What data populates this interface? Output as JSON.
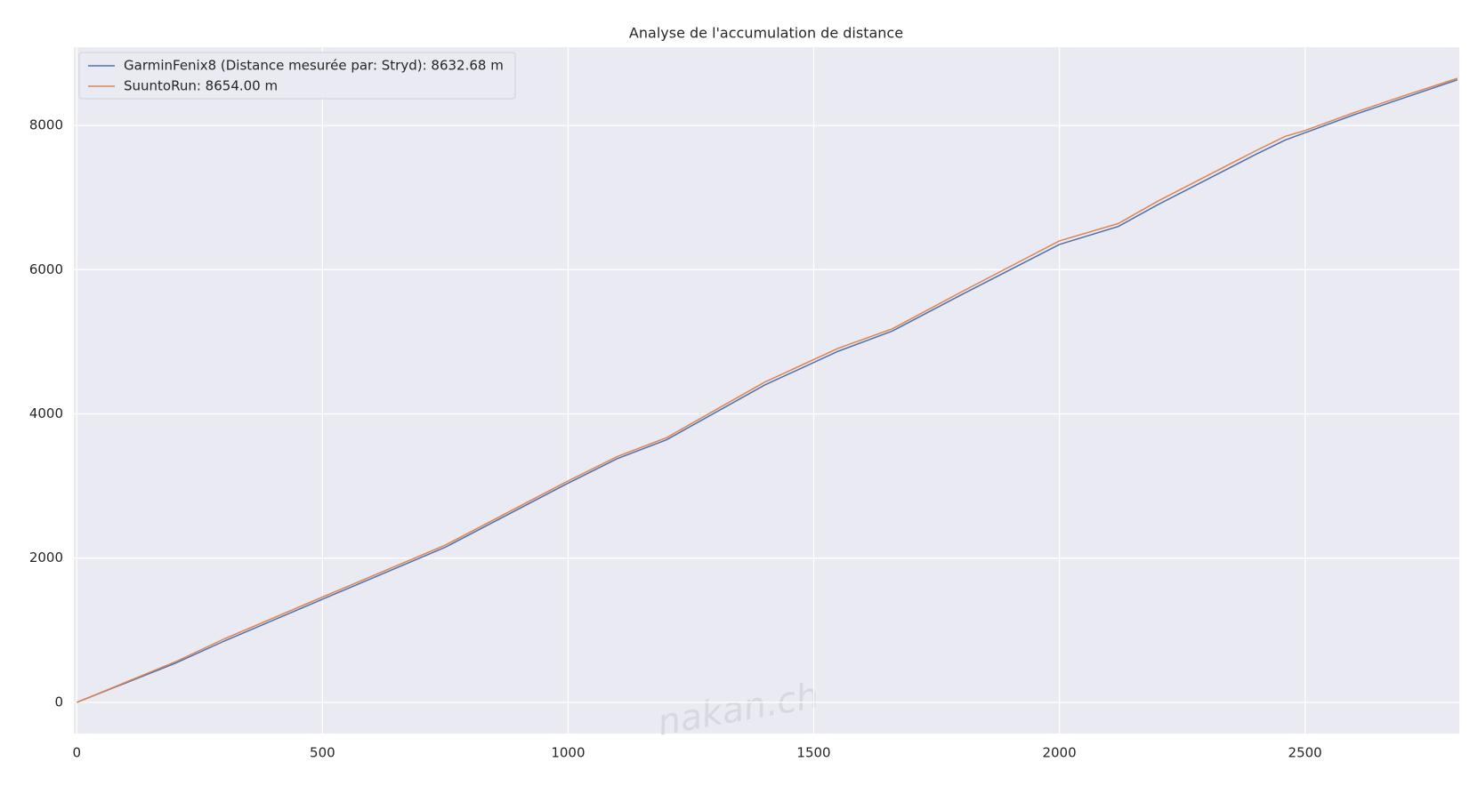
{
  "chart_data": {
    "type": "line",
    "title": "Analyse de l'accumulation de distance",
    "watermark": "nakan.ch",
    "series": [
      {
        "name": "GarminFenix8 (Distance mesurée par: Stryd): 8632.68 m",
        "color": "#4c72b0",
        "x": [
          0,
          100,
          200,
          300,
          500,
          750,
          1000,
          1100,
          1200,
          1400,
          1550,
          1660,
          1800,
          2000,
          2120,
          2200,
          2400,
          2460,
          2500,
          2600,
          2700,
          2810
        ],
        "values": [
          0,
          270,
          540,
          850,
          1430,
          2150,
          3040,
          3380,
          3640,
          4400,
          4870,
          5150,
          5650,
          6350,
          6600,
          6900,
          7600,
          7800,
          7900,
          8150,
          8380,
          8632.68
        ]
      },
      {
        "name": "SuuntoRun: 8654.00 m",
        "color": "#dd8452",
        "x": [
          0,
          100,
          200,
          300,
          500,
          750,
          1000,
          1100,
          1200,
          1400,
          1550,
          1660,
          1800,
          2000,
          2120,
          2200,
          2400,
          2460,
          2500,
          2600,
          2700,
          2810
        ],
        "values": [
          0,
          280,
          560,
          880,
          1460,
          2180,
          3070,
          3410,
          3670,
          4440,
          4910,
          5180,
          5690,
          6400,
          6640,
          6950,
          7650,
          7850,
          7930,
          8180,
          8410,
          8654
        ]
      }
    ],
    "xlim": [
      -6,
      2814
    ],
    "xticks": [
      0,
      500,
      1000,
      1500,
      2000,
      2500
    ],
    "ylim": [
      -433,
      9087
    ],
    "yticks": [
      0,
      2000,
      4000,
      6000,
      8000
    ],
    "grid": true,
    "legend": "upper-left"
  }
}
